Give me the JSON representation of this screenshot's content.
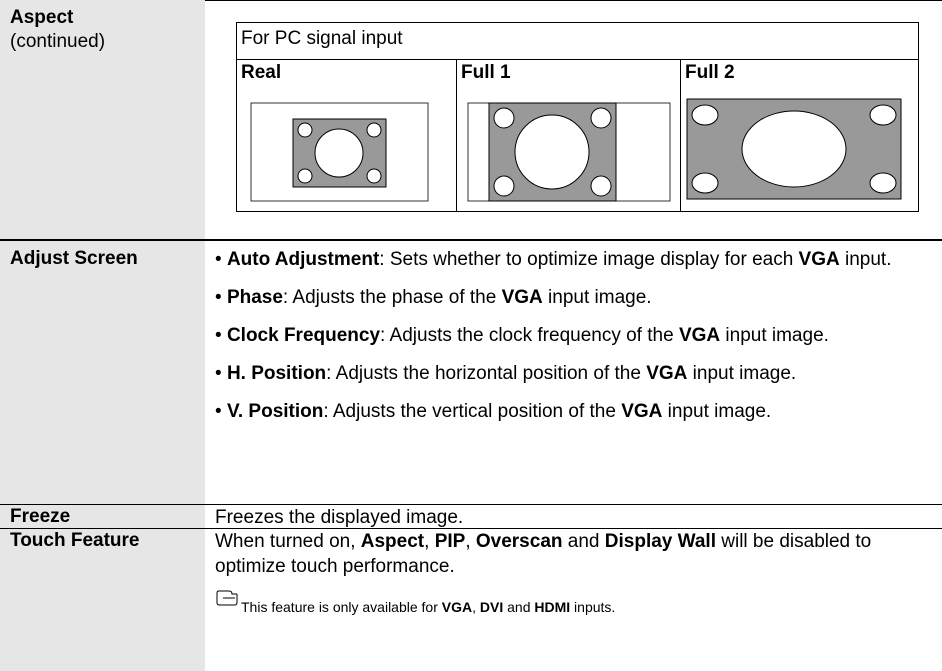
{
  "rows": [
    {
      "label": "Aspect",
      "sublabel": "(continued)",
      "figure": {
        "caption": "For PC signal input",
        "columns": [
          "Real",
          "Full 1",
          "Full 2"
        ]
      }
    },
    {
      "label": "Adjust Screen",
      "bulleted": true,
      "paragraphs": [
        [
          {
            "text": "Auto Adjustment",
            "bold": true
          },
          {
            "text": ": Sets whether to optimize image display for each "
          },
          {
            "text": "VGA",
            "bold": true
          },
          {
            "text": " input."
          }
        ],
        [
          {
            "text": "Phase",
            "bold": true
          },
          {
            "text": ": Adjusts the phase of the "
          },
          {
            "text": "VGA",
            "bold": true
          },
          {
            "text": " input image."
          }
        ],
        [
          {
            "text": "Clock Frequency",
            "bold": true
          },
          {
            "text": ": Adjusts the clock frequency of the "
          },
          {
            "text": "VGA",
            "bold": true
          },
          {
            "text": " input image."
          }
        ],
        [
          {
            "text": "H. Position",
            "bold": true
          },
          {
            "text": ": Adjusts the horizontal position of the "
          },
          {
            "text": "VGA",
            "bold": true
          },
          {
            "text": " input image."
          }
        ],
        [
          {
            "text": "V. Position",
            "bold": true
          },
          {
            "text": ": Adjusts the vertical position of the "
          },
          {
            "text": "VGA",
            "bold": true
          },
          {
            "text": " input image."
          }
        ]
      ]
    },
    {
      "label": "Freeze",
      "paragraphs": [
        [
          {
            "text": "Freezes the displayed image."
          }
        ]
      ]
    },
    {
      "label": "Touch Feature",
      "paragraphs": [
        [
          {
            "text": "When turned on, "
          },
          {
            "text": "Aspect",
            "bold": true
          },
          {
            "text": ", "
          },
          {
            "text": "PIP",
            "bold": true
          },
          {
            "text": ", "
          },
          {
            "text": "Overscan",
            "bold": true
          },
          {
            "text": " and "
          },
          {
            "text": "Display Wall",
            "bold": true
          },
          {
            "text": " will be disabled to optimize touch performance."
          }
        ]
      ],
      "note": [
        {
          "text": "This feature is only available for "
        },
        {
          "text": "VGA",
          "bold": true
        },
        {
          "text": ", "
        },
        {
          "text": "DVI",
          "bold": true
        },
        {
          "text": " and "
        },
        {
          "text": "HDMI",
          "bold": true
        },
        {
          "text": " inputs."
        }
      ]
    }
  ]
}
